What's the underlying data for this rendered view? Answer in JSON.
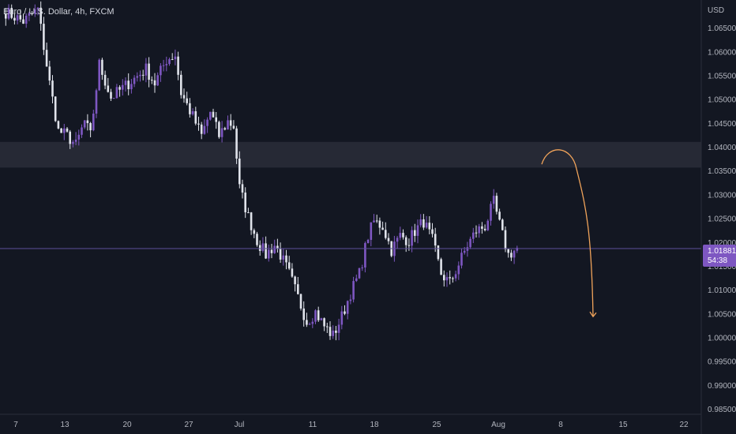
{
  "header": {
    "symbol_title": "Euro / U.S. Dollar, 4h, FXCM"
  },
  "price_tag": {
    "price": "1.01881",
    "countdown": "54:38"
  },
  "colors": {
    "background": "#131722",
    "candle_up": "#7e57c2",
    "candle_down": "#e0e3eb",
    "zone": "#2a2d38",
    "arrow": "#f0a35a",
    "price_line": "#5d4f9a",
    "tag": "#7e57c2"
  },
  "chart_data": {
    "type": "candlestick",
    "y_axis": {
      "unit": "USD",
      "range": [
        0.984,
        1.071
      ],
      "ticks": [
        "1.06500",
        "1.06000",
        "1.05500",
        "1.05000",
        "1.04500",
        "1.04000",
        "1.03500",
        "1.03000",
        "1.02500",
        "1.02000",
        "1.01500",
        "1.01000",
        "1.00500",
        "1.00000",
        "0.99500",
        "0.99000",
        "0.98500"
      ]
    },
    "x_axis": {
      "ticks": [
        "7",
        "13",
        "20",
        "27",
        "Jul",
        "11",
        "18",
        "25",
        "Aug",
        "8",
        "15",
        "22"
      ]
    },
    "resistance_zone": {
      "y_from": 1.0358,
      "y_to": 1.0412
    },
    "current_price": 1.01881,
    "projection_arrow": {
      "from": 1.0365,
      "peak": 1.0392,
      "to": 1.0045
    },
    "anchors": [
      [
        0,
        1.0685
      ],
      [
        6,
        1.0665
      ],
      [
        11,
        1.069
      ],
      [
        15,
        1.0535
      ],
      [
        18,
        1.0435
      ],
      [
        21,
        1.0425
      ],
      [
        24,
        1.0405
      ],
      [
        27,
        1.0455
      ],
      [
        29,
        1.0425
      ],
      [
        32,
        1.0575
      ],
      [
        36,
        1.0505
      ],
      [
        40,
        1.0525
      ],
      [
        44,
        1.0545
      ],
      [
        48,
        1.0565
      ],
      [
        51,
        1.0535
      ],
      [
        55,
        1.0585
      ],
      [
        58,
        1.0595
      ],
      [
        60,
        1.0515
      ],
      [
        64,
        1.0465
      ],
      [
        67,
        1.0425
      ],
      [
        70,
        1.0475
      ],
      [
        73,
        1.0425
      ],
      [
        76,
        1.0455
      ],
      [
        78,
        1.0445
      ],
      [
        80,
        1.0315
      ],
      [
        83,
        1.0255
      ],
      [
        86,
        1.0205
      ],
      [
        89,
        1.0175
      ],
      [
        92,
        1.0195
      ],
      [
        94,
        1.0175
      ],
      [
        97,
        1.0135
      ],
      [
        100,
        1.0085
      ],
      [
        103,
        1.0035
      ],
      [
        106,
        1.0055
      ],
      [
        109,
        1.0025
      ],
      [
        112,
        1.0005
      ],
      [
        115,
        1.0045
      ],
      [
        118,
        1.0095
      ],
      [
        121,
        1.0135
      ],
      [
        124,
        1.0215
      ],
      [
        126,
        1.0245
      ],
      [
        129,
        1.0235
      ],
      [
        132,
        1.0185
      ],
      [
        135,
        1.0215
      ],
      [
        138,
        1.0205
      ],
      [
        140,
        1.0225
      ],
      [
        143,
        1.0245
      ],
      [
        146,
        1.0205
      ],
      [
        149,
        1.0135
      ],
      [
        152,
        1.0115
      ],
      [
        155,
        1.0155
      ],
      [
        158,
        1.0195
      ],
      [
        161,
        1.0225
      ],
      [
        164,
        1.0235
      ],
      [
        167,
        1.0285
      ],
      [
        170,
        1.0215
      ],
      [
        172,
        1.0175
      ],
      [
        175,
        1.0188
      ]
    ]
  }
}
